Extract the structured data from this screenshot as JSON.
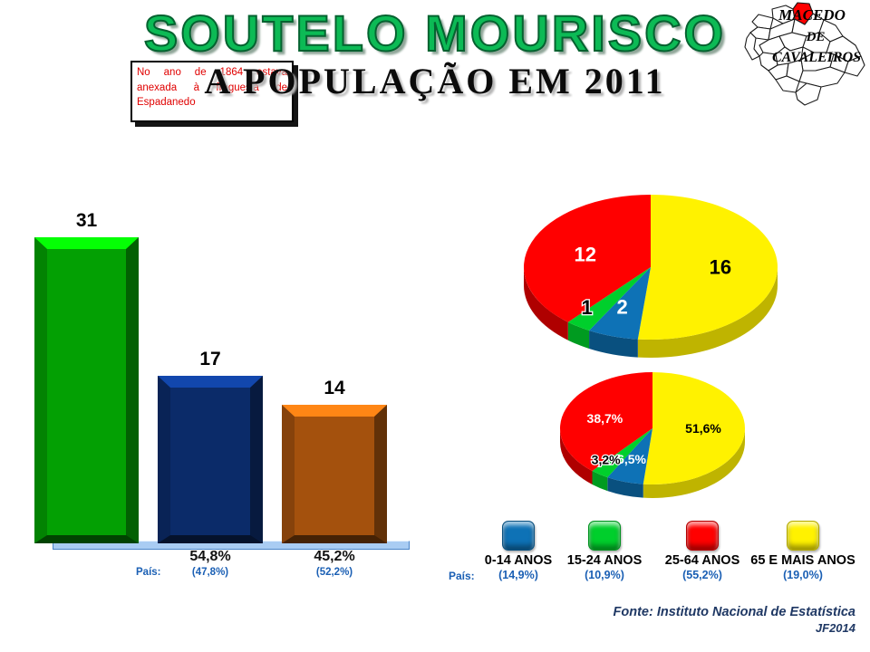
{
  "slide": {
    "title": "SOUTELO MOURISCO",
    "subtitle": "A POPULAÇÃO EM 2011",
    "note": "No ano de 1864 estava anexada à freguesia de Espadanedo"
  },
  "map": {
    "label_lines": [
      "MACEDO",
      "DE",
      "CAVALEIROS"
    ],
    "highlight_color": "#FF0000"
  },
  "footer": {
    "source": "Fonte: Instituto Nacional de Estatística",
    "credit": "JF2014"
  },
  "colors": {
    "pais_blue": "#1A5FB4",
    "footer_navy": "#1F3864",
    "title_green": "#0CBA55"
  },
  "chart_data": [
    {
      "type": "bar",
      "title": "",
      "xlabel": "",
      "ylabel": "",
      "ylim": [
        0,
        34
      ],
      "grid": false,
      "values": [
        31,
        17,
        14
      ],
      "value_labels": [
        "31",
        "17",
        "14"
      ],
      "colors": [
        "#03A003",
        "#0B2B69",
        "#A4510D"
      ],
      "pct_labels": [
        "",
        "54,8%",
        "45,2%"
      ],
      "pais_prefix": "País:",
      "pais_labels": [
        "",
        "(47,8%)",
        "(52,2%)"
      ]
    },
    {
      "type": "pie",
      "title": "",
      "variant": "counts",
      "legend_position": "none",
      "slices": [
        {
          "name": "65 E MAIS ANOS",
          "value": 16,
          "label": "16",
          "color": "#FFF200",
          "dark": "#BFB400",
          "label_color": "#000000"
        },
        {
          "name": "0-14 ANOS",
          "value": 2,
          "label": "2",
          "color": "#0E72B6",
          "dark": "#09507F",
          "label_color": "#FFFFFF"
        },
        {
          "name": "15-24 ANOS",
          "value": 1,
          "label": "1",
          "color": "#00CF2C",
          "dark": "#009B20",
          "label_color": "#000000"
        },
        {
          "name": "25-64 ANOS",
          "value": 12,
          "label": "12",
          "color": "#FF0000",
          "dark": "#AF0000",
          "label_color": "#FFFFFF"
        }
      ]
    },
    {
      "type": "pie",
      "title": "",
      "variant": "percentages",
      "legend_position": "bottom",
      "slices": [
        {
          "name": "65 E MAIS ANOS",
          "value": 51.6,
          "label": "51,6%",
          "color": "#FFF200",
          "dark": "#BFB400",
          "label_color": "#000000"
        },
        {
          "name": "0-14 ANOS",
          "value": 6.5,
          "label": "6,5%",
          "color": "#0E72B6",
          "dark": "#09507F",
          "label_color": "#FFFFFF"
        },
        {
          "name": "15-24 ANOS",
          "value": 3.2,
          "label": "3,2%",
          "color": "#00CF2C",
          "dark": "#009B20",
          "label_color": "#000000"
        },
        {
          "name": "25-64 ANOS",
          "value": 38.7,
          "label": "38,7%",
          "color": "#FF0000",
          "dark": "#AF0000",
          "label_color": "#FFFFFF"
        }
      ]
    }
  ],
  "legend": {
    "pais_prefix": "País:",
    "items": [
      {
        "label": "0-14 ANOS",
        "color": "#0E72B6",
        "pais": "(14,9%)"
      },
      {
        "label": "15-24 ANOS",
        "color": "#00CF2C",
        "pais": "(10,9%)"
      },
      {
        "label": "25-64 ANOS",
        "color": "#FF0000",
        "pais": "(55,2%)"
      },
      {
        "label": "65 E MAIS ANOS",
        "color": "#FFF200",
        "pais": "(19,0%)"
      }
    ]
  }
}
